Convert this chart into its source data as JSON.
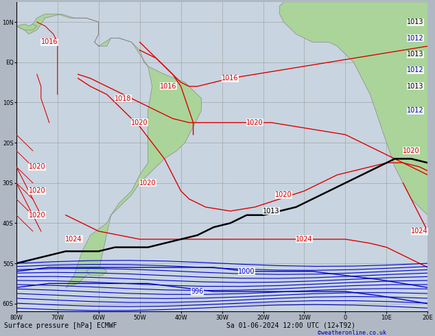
{
  "title": "Surface pressure [hPa] ECMWF",
  "date_str": "Sa 01-06-2024 12:00 UTC (12+T92)",
  "credit": "©weatheronline.co.uk",
  "figsize": [
    6.34,
    4.9
  ],
  "dpi": 100,
  "bg_ocean": "#c8d4e0",
  "bg_land": "#aad49a",
  "grid_color": "#999999",
  "contour_red": "#dd0000",
  "contour_blue": "#0000cc",
  "contour_black": "#000000",
  "label_fontsize": 7,
  "bottom_fontsize": 7,
  "credit_color": "#0000aa",
  "lon_min": -80,
  "lon_max": 20,
  "lat_min": -62,
  "lat_max": 15,
  "xticks": [
    -80,
    -70,
    -60,
    -50,
    -40,
    -30,
    -20,
    -10,
    0,
    10,
    20
  ],
  "yticks": [
    -60,
    -50,
    -40,
    -30,
    -20,
    -10,
    0,
    10
  ]
}
